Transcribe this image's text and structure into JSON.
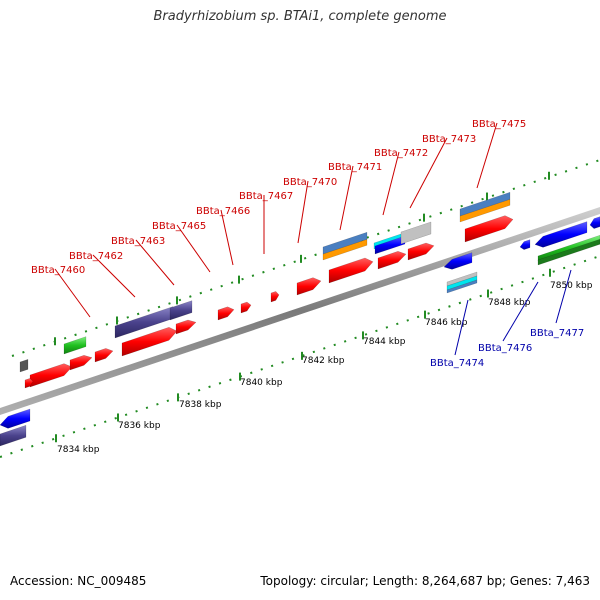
{
  "title": "Bradyrhizobium sp. BTAi1, complete genome",
  "footer": {
    "accession": "Accession: NC_009485",
    "summary": "Topology: circular; Length: 8,264,687 bp; Genes: 7,463"
  },
  "ruler_labels": [
    "7834 kbp",
    "7836 kbp",
    "7838 kbp",
    "7840 kbp",
    "7842 kbp",
    "7844 kbp",
    "7846 kbp",
    "7848 kbp",
    "7850 kbp"
  ],
  "genes_forward": [
    "BBta_7460",
    "BBta_7462",
    "BBta_7463",
    "BBta_7465",
    "BBta_7466",
    "BBta_7467",
    "BBta_7470",
    "BBta_7471",
    "BBta_7472",
    "BBta_7473",
    "BBta_7475"
  ],
  "genes_reverse": [
    "BBta_7474",
    "BBta_7476",
    "BBta_7477"
  ],
  "colors": {
    "forward_label": "#cc0000",
    "reverse_label": "#0000aa",
    "cds": "#ff0000",
    "backbone": "#888888",
    "tick": "#228b22"
  }
}
